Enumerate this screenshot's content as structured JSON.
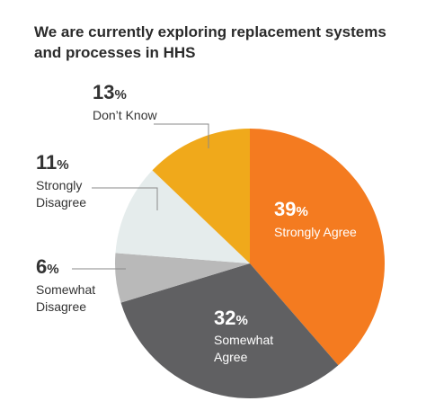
{
  "chart_data": {
    "type": "pie",
    "title": "We are currently exploring replacement systems and processes in HHS",
    "slices": [
      {
        "label": "Strongly Agree",
        "lines": [
          "Strongly Agree"
        ],
        "value": 39,
        "color": "#f47b20",
        "label_inside": true
      },
      {
        "label": "Somewhat Agree",
        "lines": [
          "Somewhat",
          "Agree"
        ],
        "value": 32,
        "color": "#606062",
        "label_inside": true
      },
      {
        "label": "Somewhat Disagree",
        "lines": [
          "Somewhat",
          "Disagree"
        ],
        "value": 6,
        "color": "#b9b9b9",
        "label_inside": false
      },
      {
        "label": "Strongly Disagree",
        "lines": [
          "Strongly",
          "Disagree"
        ],
        "value": 11,
        "color": "#e5ecec",
        "label_inside": false
      },
      {
        "label": "Don’t Know",
        "lines": [
          "Don’t Know"
        ],
        "value": 13,
        "color": "#f0a91b",
        "label_inside": false
      }
    ],
    "percent_suffix": "%",
    "start_angle_deg": 0,
    "direction": "clockwise",
    "legend": "none"
  }
}
